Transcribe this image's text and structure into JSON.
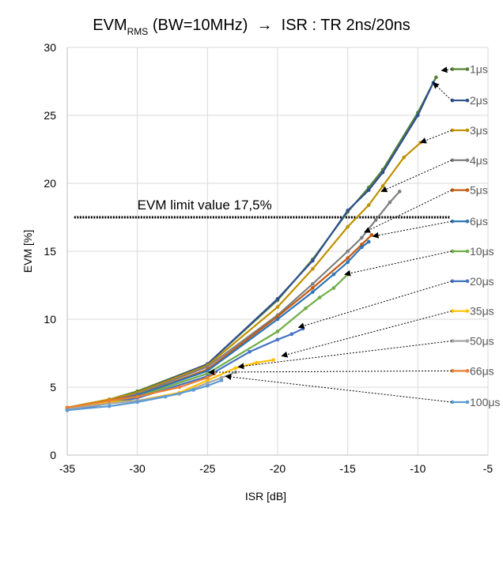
{
  "chart_data": {
    "type": "line",
    "title_main": "EVM",
    "title_sub": "RMS",
    "title_rest": " (BW=10MHz)  →  ISR : TR 2ns/20ns",
    "xlabel": "ISR [dB]",
    "ylabel": "EVM [%]",
    "xlim": [
      -35,
      -5
    ],
    "ylim": [
      0,
      30
    ],
    "xticks": [
      "-35",
      "-30",
      "-25",
      "-20",
      "-15",
      "-10",
      "-5"
    ],
    "yticks": [
      "0",
      "5",
      "10",
      "15",
      "20",
      "25",
      "30"
    ],
    "grid": true,
    "limit": {
      "value": 17.5,
      "label": "EVM limit value 17,5%",
      "x_range": [
        -34.5,
        -7.7
      ]
    },
    "series": [
      {
        "name": "1μs",
        "color": "#548235",
        "x": [
          -35,
          -32,
          -30,
          -25,
          -20,
          -17.5,
          -15,
          -13.5,
          -12.5,
          -10,
          -8.7
        ],
        "y": [
          3.5,
          4.1,
          4.7,
          6.7,
          11.4,
          14.4,
          17.9,
          19.7,
          21,
          25.2,
          27.8
        ],
        "label_y": 28.4,
        "arrow_to": [
          -8.3,
          28.3
        ]
      },
      {
        "name": "2μs",
        "color": "#2f4f8f",
        "x": [
          -35,
          -32,
          -30,
          -25,
          -20,
          -17.5,
          -15,
          -13.5,
          -12.5,
          -10,
          -8.9
        ],
        "y": [
          3.4,
          4.0,
          4.6,
          6.7,
          11.5,
          14.3,
          18.0,
          19.5,
          20.8,
          25.0,
          27.4
        ],
        "label_y": 26.1,
        "arrow_to": [
          -8.9,
          27.4
        ]
      },
      {
        "name": "3μs",
        "color": "#bf9000",
        "x": [
          -35,
          -32,
          -30,
          -25,
          -20,
          -17.5,
          -15,
          -13.5,
          -12.5,
          -11,
          -9.8
        ],
        "y": [
          3.5,
          4.1,
          4.6,
          6.6,
          10.9,
          13.7,
          16.8,
          18.4,
          19.8,
          21.9,
          23.0
        ],
        "label_y": 23.9,
        "arrow_to": [
          -9.8,
          23.0
        ]
      },
      {
        "name": "4μs",
        "color": "#7f7f7f",
        "x": [
          -35,
          -32,
          -30,
          -25,
          -20,
          -17.5,
          -15,
          -14,
          -13,
          -12,
          -11.3
        ],
        "y": [
          3.4,
          4.0,
          4.5,
          6.5,
          10.3,
          12.6,
          15.0,
          16.0,
          17.3,
          18.6,
          19.4
        ],
        "label_y": 21.7,
        "arrow_to": [
          -12.6,
          19.4
        ]
      },
      {
        "name": "5μs",
        "color": "#c55a11",
        "x": [
          -35,
          -32,
          -30,
          -25,
          -20,
          -17.5,
          -15,
          -14,
          -13.3
        ],
        "y": [
          3.4,
          4.0,
          4.4,
          6.3,
          10.2,
          12.3,
          14.5,
          15.5,
          16.2
        ],
        "label_y": 19.5,
        "arrow_to": [
          -13.8,
          16.4
        ]
      },
      {
        "name": "6μs",
        "color": "#2e75b6",
        "x": [
          -35,
          -32,
          -30,
          -25,
          -20,
          -17.5,
          -16,
          -15,
          -14,
          -13.5
        ],
        "y": [
          3.4,
          3.9,
          4.4,
          6.2,
          10.0,
          12.0,
          13.3,
          14.2,
          15.3,
          15.7
        ],
        "label_y": 17.2,
        "arrow_to": [
          -13.2,
          16.1
        ]
      },
      {
        "name": "10μs",
        "color": "#70ad47",
        "x": [
          -35,
          -32,
          -30,
          -25,
          -20,
          -18,
          -17,
          -16,
          -15
        ],
        "y": [
          3.3,
          3.8,
          4.3,
          6.0,
          9.1,
          10.8,
          11.6,
          12.3,
          13.3
        ],
        "label_y": 15.0,
        "arrow_to": [
          -15.2,
          13.3
        ]
      },
      {
        "name": "20μs",
        "color": "#4472c4",
        "x": [
          -35,
          -32,
          -30,
          -25,
          -22,
          -20,
          -19,
          -18.2
        ],
        "y": [
          3.3,
          3.8,
          4.2,
          5.8,
          7.6,
          8.5,
          8.9,
          9.3
        ],
        "label_y": 12.8,
        "arrow_to": [
          -18.5,
          9.4
        ]
      },
      {
        "name": "35μs",
        "color": "#ffc000",
        "x": [
          -35,
          -32,
          -30,
          -27,
          -25,
          -23,
          -21.5,
          -20.3
        ],
        "y": [
          3.5,
          3.9,
          4.0,
          4.6,
          5.5,
          6.4,
          6.8,
          7.0
        ],
        "label_y": 10.6,
        "arrow_to": [
          -19.7,
          7.3
        ]
      },
      {
        "name": "50μs",
        "color": "#a5a5a5",
        "x": [
          -35,
          -32,
          -30,
          -27,
          -25,
          -24,
          -23
        ],
        "y": [
          3.4,
          3.8,
          4.0,
          4.5,
          5.3,
          5.7,
          6.1
        ],
        "label_y": 8.4,
        "arrow_to": [
          -22.8,
          6.5
        ]
      },
      {
        "name": "66μs",
        "color": "#ed7d31",
        "x": [
          -35,
          -32,
          -30,
          -27,
          -25,
          -24.5
        ],
        "y": [
          3.5,
          4.0,
          4.3,
          5.0,
          5.7,
          6.0
        ],
        "label_y": 6.2,
        "arrow_to": [
          -24.9,
          6.1
        ]
      },
      {
        "name": "100μs",
        "color": "#5b9bd5",
        "x": [
          -35,
          -32,
          -30,
          -28,
          -26,
          -25,
          -24
        ],
        "y": [
          3.3,
          3.6,
          3.9,
          4.3,
          4.8,
          5.1,
          5.5
        ],
        "label_y": 3.9,
        "arrow_to": [
          -23.7,
          5.8
        ]
      }
    ]
  }
}
